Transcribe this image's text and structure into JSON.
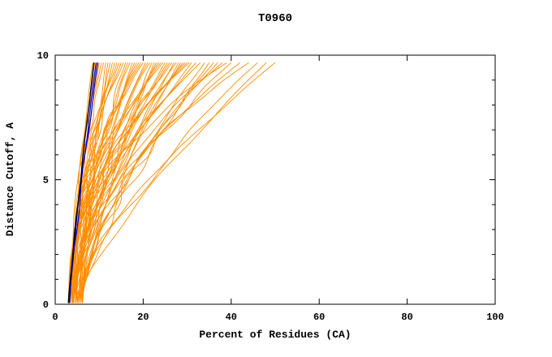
{
  "chart_data": {
    "type": "line",
    "title": "T0960",
    "xlabel": "Percent of Residues (CA)",
    "ylabel": "Distance Cutoff, A",
    "xlim": [
      0,
      100
    ],
    "ylim": [
      0,
      10
    ],
    "x_ticks": [
      0,
      20,
      40,
      60,
      80,
      100
    ],
    "y_ticks": [
      0,
      5,
      10
    ],
    "grid": false,
    "legend": "none",
    "curve_y_span": [
      0.05,
      9.7
    ],
    "colors": {
      "prediction": "#FF8C00",
      "best_model": "#0000CD",
      "reference": "#000000",
      "frame": "#000000",
      "background": "#FFFFFF"
    },
    "series": [
      {
        "color": "#FF8C00",
        "x_start": 3.0,
        "x_end": 8.5,
        "power": 1.3,
        "wiggle": 0.3
      },
      {
        "color": "#FF8C00",
        "x_start": 3.4,
        "x_end": 9.0,
        "power": 1.5,
        "wiggle": 0.55
      },
      {
        "color": "#FF8C00",
        "x_start": 3.8,
        "x_end": 9.5,
        "power": 1.7,
        "wiggle": 0.8
      },
      {
        "color": "#FF8C00",
        "x_start": 4.2,
        "x_end": 10.0,
        "power": 1.9,
        "wiggle": 1.05
      },
      {
        "color": "#FF8C00",
        "x_start": 4.6,
        "x_end": 10.5,
        "power": 2.1,
        "wiggle": 0.3
      },
      {
        "color": "#FF8C00",
        "x_start": 5.0,
        "x_end": 11.0,
        "power": 2.3,
        "wiggle": 0.55
      },
      {
        "color": "#FF8C00",
        "x_start": 5.4,
        "x_end": 11.5,
        "power": 1.6,
        "wiggle": 0.8
      },
      {
        "color": "#FF8C00",
        "x_start": 5.8,
        "x_end": 12.0,
        "power": 1.8,
        "wiggle": 1.05
      },
      {
        "color": "#FF8C00",
        "x_start": 6.2,
        "x_end": 12.5,
        "power": 2.0,
        "wiggle": 0.3
      },
      {
        "color": "#FF8C00",
        "x_start": 4.0,
        "x_end": 13.0,
        "power": 1.4,
        "wiggle": 0.55
      },
      {
        "color": "#FF8C00",
        "x_start": 3.0,
        "x_end": 13.5,
        "power": 1.5,
        "wiggle": 0.8
      },
      {
        "color": "#FF8C00",
        "x_start": 3.4,
        "x_end": 14.0,
        "power": 1.7,
        "wiggle": 1.05
      },
      {
        "color": "#FF8C00",
        "x_start": 3.8,
        "x_end": 14.5,
        "power": 1.9,
        "wiggle": 0.3
      },
      {
        "color": "#FF8C00",
        "x_start": 4.2,
        "x_end": 15.0,
        "power": 2.1,
        "wiggle": 0.55
      },
      {
        "color": "#FF8C00",
        "x_start": 4.6,
        "x_end": 15.5,
        "power": 2.3,
        "wiggle": 0.8
      },
      {
        "color": "#FF8C00",
        "x_start": 5.0,
        "x_end": 16.0,
        "power": 1.6,
        "wiggle": 1.05
      },
      {
        "color": "#FF8C00",
        "x_start": 5.4,
        "x_end": 16.5,
        "power": 1.8,
        "wiggle": 0.3
      },
      {
        "color": "#FF8C00",
        "x_start": 5.8,
        "x_end": 17.0,
        "power": 2.0,
        "wiggle": 0.55
      },
      {
        "color": "#FF8C00",
        "x_start": 6.2,
        "x_end": 17.5,
        "power": 1.4,
        "wiggle": 0.8
      },
      {
        "color": "#FF8C00",
        "x_start": 4.0,
        "x_end": 18.0,
        "power": 1.3,
        "wiggle": 1.05
      },
      {
        "color": "#FF8C00",
        "x_start": 3.0,
        "x_end": 18.5,
        "power": 1.7,
        "wiggle": 0.3
      },
      {
        "color": "#FF8C00",
        "x_start": 3.4,
        "x_end": 19.0,
        "power": 1.9,
        "wiggle": 0.55
      },
      {
        "color": "#FF8C00",
        "x_start": 3.8,
        "x_end": 19.5,
        "power": 2.1,
        "wiggle": 0.8
      },
      {
        "color": "#FF8C00",
        "x_start": 4.2,
        "x_end": 20.0,
        "power": 2.3,
        "wiggle": 1.05
      },
      {
        "color": "#FF8C00",
        "x_start": 4.6,
        "x_end": 20.5,
        "power": 1.6,
        "wiggle": 0.3
      },
      {
        "color": "#FF8C00",
        "x_start": 5.0,
        "x_end": 21.0,
        "power": 1.8,
        "wiggle": 0.55
      },
      {
        "color": "#FF8C00",
        "x_start": 5.4,
        "x_end": 21.5,
        "power": 2.0,
        "wiggle": 0.8
      },
      {
        "color": "#FF8C00",
        "x_start": 5.8,
        "x_end": 22.0,
        "power": 1.4,
        "wiggle": 1.05
      },
      {
        "color": "#FF8C00",
        "x_start": 6.2,
        "x_end": 22.5,
        "power": 1.3,
        "wiggle": 0.3
      },
      {
        "color": "#FF8C00",
        "x_start": 4.0,
        "x_end": 23.0,
        "power": 1.5,
        "wiggle": 0.55
      },
      {
        "color": "#FF8C00",
        "x_start": 3.0,
        "x_end": 23.5,
        "power": 1.9,
        "wiggle": 0.8
      },
      {
        "color": "#FF8C00",
        "x_start": 3.4,
        "x_end": 24.0,
        "power": 2.1,
        "wiggle": 1.05
      },
      {
        "color": "#FF8C00",
        "x_start": 3.8,
        "x_end": 24.5,
        "power": 2.3,
        "wiggle": 0.3
      },
      {
        "color": "#FF8C00",
        "x_start": 4.2,
        "x_end": 25.0,
        "power": 1.6,
        "wiggle": 0.55
      },
      {
        "color": "#FF8C00",
        "x_start": 4.6,
        "x_end": 26.0,
        "power": 1.8,
        "wiggle": 0.8
      },
      {
        "color": "#FF8C00",
        "x_start": 5.0,
        "x_end": 26.5,
        "power": 2.0,
        "wiggle": 1.05
      },
      {
        "color": "#FF8C00",
        "x_start": 5.4,
        "x_end": 27.0,
        "power": 1.4,
        "wiggle": 0.3
      },
      {
        "color": "#FF8C00",
        "x_start": 5.8,
        "x_end": 28.0,
        "power": 1.3,
        "wiggle": 0.55
      },
      {
        "color": "#FF8C00",
        "x_start": 6.2,
        "x_end": 28.5,
        "power": 1.5,
        "wiggle": 0.8
      },
      {
        "color": "#FF8C00",
        "x_start": 4.0,
        "x_end": 29.0,
        "power": 1.7,
        "wiggle": 1.05
      },
      {
        "color": "#FF8C00",
        "x_start": 3.0,
        "x_end": 30.0,
        "power": 2.1,
        "wiggle": 0.3
      },
      {
        "color": "#FF8C00",
        "x_start": 3.4,
        "x_end": 30.5,
        "power": 2.3,
        "wiggle": 0.55
      },
      {
        "color": "#FF8C00",
        "x_start": 3.8,
        "x_end": 31.0,
        "power": 1.6,
        "wiggle": 0.8
      },
      {
        "color": "#FF8C00",
        "x_start": 4.2,
        "x_end": 32.0,
        "power": 1.8,
        "wiggle": 1.05
      },
      {
        "color": "#FF8C00",
        "x_start": 4.6,
        "x_end": 33.0,
        "power": 2.0,
        "wiggle": 0.3
      },
      {
        "color": "#FF8C00",
        "x_start": 5.0,
        "x_end": 34.0,
        "power": 1.4,
        "wiggle": 0.55
      },
      {
        "color": "#FF8C00",
        "x_start": 5.4,
        "x_end": 35.0,
        "power": 1.3,
        "wiggle": 0.8
      },
      {
        "color": "#FF8C00",
        "x_start": 5.8,
        "x_end": 36.0,
        "power": 1.5,
        "wiggle": 1.05
      },
      {
        "color": "#FF8C00",
        "x_start": 6.2,
        "x_end": 37.0,
        "power": 1.7,
        "wiggle": 0.3
      },
      {
        "color": "#FF8C00",
        "x_start": 4.0,
        "x_end": 38.0,
        "power": 1.9,
        "wiggle": 0.55
      },
      {
        "color": "#FF8C00",
        "x_start": 3.0,
        "x_end": 39.0,
        "power": 2.3,
        "wiggle": 0.8
      },
      {
        "color": "#FF8C00",
        "x_start": 3.4,
        "x_end": 40.0,
        "power": 1.6,
        "wiggle": 1.05
      },
      {
        "color": "#FF8C00",
        "x_start": 3.8,
        "x_end": 42.0,
        "power": 1.8,
        "wiggle": 0.3
      },
      {
        "color": "#FF8C00",
        "x_start": 4.2,
        "x_end": 44.0,
        "power": 2.0,
        "wiggle": 0.55
      },
      {
        "color": "#FF8C00",
        "x_start": 4.6,
        "x_end": 46.0,
        "power": 1.4,
        "wiggle": 0.8
      },
      {
        "color": "#FF8C00",
        "x_start": 5.0,
        "x_end": 48.0,
        "power": 1.3,
        "wiggle": 1.05
      },
      {
        "color": "#FF8C00",
        "x_start": 5.4,
        "x_end": 50.0,
        "power": 1.5,
        "wiggle": 0.8
      },
      {
        "color": "#FF8C00",
        "x_start": 5.8,
        "x_end": 25.5,
        "power": 1.7,
        "wiggle": 0.55
      },
      {
        "color": "#FF8C00",
        "x_start": 6.2,
        "x_end": 27.5,
        "power": 1.9,
        "wiggle": 0.3
      },
      {
        "color": "#FF8C00",
        "x_start": 4.0,
        "x_end": 29.5,
        "power": 2.1,
        "wiggle": 0.55
      },
      {
        "color": "#0000CD",
        "x_start": 3.2,
        "x_end": 9.3,
        "power": 1.18,
        "wiggle": 0.12,
        "width": 1.2
      },
      {
        "color": "#0000CD",
        "x_start": 3.3,
        "x_end": 9.7,
        "power": 1.22,
        "wiggle": 0.18,
        "width": 1.2
      },
      {
        "color": "#000000",
        "x_start": 3.0,
        "x_end": 8.8,
        "power": 1.12,
        "wiggle": 0.08,
        "width": 1.4
      }
    ]
  }
}
